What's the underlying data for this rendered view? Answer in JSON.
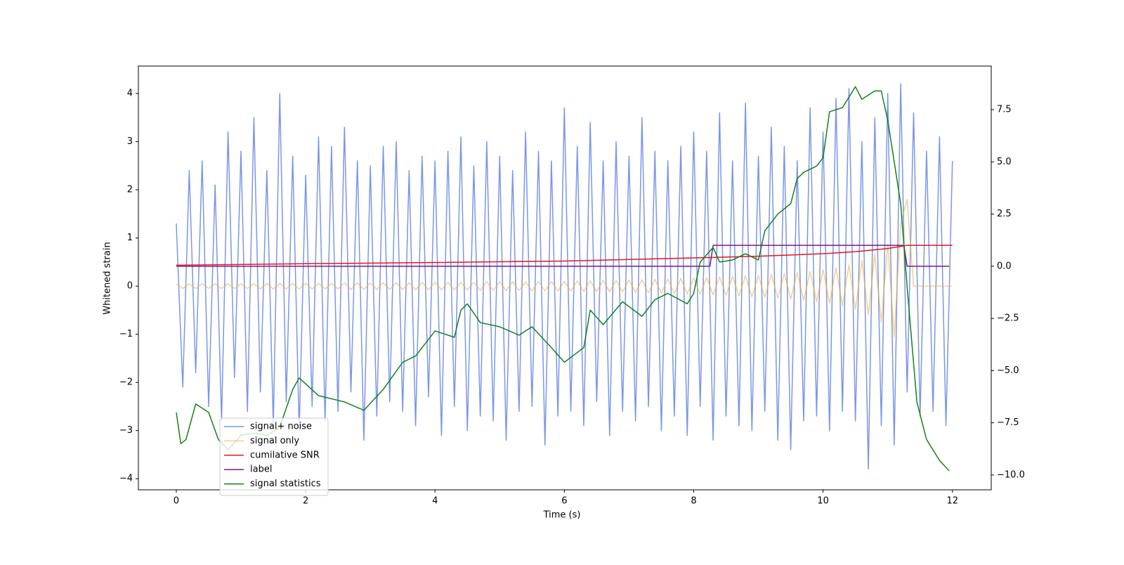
{
  "chart_data": {
    "type": "line",
    "xlabel": "Time (s)",
    "ylabel": "Whitened strain",
    "xlim": [
      -0.586,
      12.6
    ],
    "xticks": [
      0,
      2,
      4,
      6,
      8,
      10,
      12
    ],
    "ylim": [
      -4.23,
      4.57
    ],
    "yticks": [
      {
        "value": -4,
        "label": "−4"
      },
      {
        "value": -3,
        "label": "−3"
      },
      {
        "value": -2,
        "label": "−2"
      },
      {
        "value": -1,
        "label": "−1"
      },
      0,
      1,
      2,
      3,
      4
    ],
    "y2lim": [
      -10.71,
      9.59
    ],
    "y2ticks": [
      {
        "value": -10,
        "label": "−10.0"
      },
      {
        "value": -7.5,
        "label": "−7.5"
      },
      {
        "value": -5,
        "label": "−5.0"
      },
      {
        "value": -2.5,
        "label": "−2.5"
      },
      {
        "value": 0,
        "label": "0.0"
      },
      2.5,
      {
        "value": 5,
        "label": "5.0"
      },
      7.5
    ],
    "legend": "lower left",
    "x": [
      0,
      0.1,
      0.2,
      0.3,
      0.4,
      0.5,
      0.6,
      0.7,
      0.8,
      0.9,
      1,
      1.1,
      1.2,
      1.3,
      1.4,
      1.5,
      1.6,
      1.7,
      1.8,
      1.9,
      2,
      2.1,
      2.2,
      2.3,
      2.4,
      2.5,
      2.6,
      2.7,
      2.8,
      2.9,
      3,
      3.1,
      3.2,
      3.3,
      3.4,
      3.5,
      3.6,
      3.7,
      3.8,
      3.9,
      4,
      4.1,
      4.2,
      4.3,
      4.4,
      4.5,
      4.6,
      4.7,
      4.8,
      4.9,
      5,
      5.1,
      5.2,
      5.3,
      5.4,
      5.5,
      5.6,
      5.7,
      5.8,
      5.9,
      6,
      6.1,
      6.2,
      6.3,
      6.4,
      6.5,
      6.6,
      6.7,
      6.8,
      6.9,
      7,
      7.1,
      7.2,
      7.3,
      7.4,
      7.5,
      7.6,
      7.7,
      7.8,
      7.9,
      8,
      8.1,
      8.2,
      8.3,
      8.4,
      8.5,
      8.6,
      8.7,
      8.8,
      8.9,
      9,
      9.1,
      9.2,
      9.3,
      9.4,
      9.5,
      9.6,
      9.7,
      9.8,
      9.9,
      10,
      10.1,
      10.2,
      10.3,
      10.4,
      10.5,
      10.6,
      10.7,
      10.8,
      10.9,
      11,
      11.1,
      11.2,
      11.3,
      11.4,
      11.5,
      11.6,
      11.7,
      11.8,
      11.9,
      12
    ],
    "series": [
      {
        "name": "signal+ noise",
        "color": "#7b96e8",
        "values": [
          1.3,
          -2.1,
          2.4,
          -1.8,
          2.6,
          -2.5,
          2.1,
          -2.8,
          3.2,
          -1.9,
          2.8,
          -2.6,
          3.5,
          -2.2,
          2.4,
          -2.9,
          4.0,
          -2.4,
          2.7,
          -3.0,
          2.3,
          -2.5,
          3.1,
          -2.8,
          2.9,
          -2.6,
          3.3,
          -2.2,
          2.6,
          -3.2,
          2.5,
          -2.7,
          2.9,
          -2.4,
          3.0,
          -2.6,
          2.4,
          -2.9,
          2.7,
          -2.3,
          2.6,
          -3.1,
          2.8,
          -2.5,
          3.1,
          -3.0,
          2.5,
          -2.7,
          3.0,
          -2.8,
          2.7,
          -3.2,
          2.4,
          -2.6,
          3.2,
          -2.5,
          2.8,
          -3.3,
          2.6,
          -2.7,
          3.7,
          -2.6,
          2.9,
          -2.9,
          3.4,
          -2.4,
          2.6,
          -3.1,
          3.0,
          -2.6,
          2.7,
          -2.8,
          3.5,
          -2.5,
          2.8,
          -3.0,
          2.6,
          -2.7,
          2.9,
          -3.1,
          3.2,
          -2.5,
          2.8,
          -3.2,
          3.6,
          -2.7,
          2.6,
          -2.9,
          3.8,
          -3.0,
          2.7,
          -2.6,
          3.3,
          -3.2,
          2.9,
          -3.4,
          2.6,
          -2.8,
          3.7,
          -2.7,
          3.2,
          -3.0,
          3.9,
          -2.6,
          4.1,
          -2.8,
          3.0,
          -3.8,
          3.5,
          -2.9,
          4.0,
          -3.3,
          4.2,
          -2.2,
          3.6,
          -2.7,
          2.8,
          -2.6,
          3.1,
          -2.9,
          2.6
        ]
      },
      {
        "name": "signal only",
        "color": "#f0b040",
        "alpha": 0.6,
        "values": [
          0.05,
          -0.05,
          0.05,
          -0.05,
          0.05,
          -0.05,
          0.05,
          -0.05,
          0.05,
          -0.05,
          0.05,
          -0.05,
          0.05,
          -0.06,
          0.06,
          -0.06,
          0.06,
          -0.06,
          0.06,
          -0.06,
          0.06,
          -0.06,
          0.06,
          -0.06,
          0.06,
          -0.06,
          0.07,
          -0.07,
          0.07,
          -0.07,
          0.07,
          -0.07,
          0.07,
          -0.07,
          0.07,
          -0.07,
          0.07,
          -0.08,
          0.08,
          -0.08,
          0.08,
          -0.08,
          0.08,
          -0.08,
          0.08,
          -0.08,
          0.08,
          -0.09,
          0.09,
          -0.09,
          0.09,
          -0.09,
          0.09,
          -0.09,
          0.09,
          -0.1,
          0.1,
          -0.1,
          0.1,
          -0.1,
          0.1,
          -0.1,
          0.11,
          -0.11,
          0.11,
          -0.11,
          0.12,
          -0.12,
          0.12,
          -0.12,
          0.13,
          -0.13,
          0.13,
          -0.14,
          0.14,
          -0.14,
          0.15,
          -0.15,
          0.16,
          -0.16,
          0.17,
          -0.17,
          0.18,
          -0.18,
          0.19,
          -0.19,
          0.2,
          -0.2,
          0.21,
          -0.22,
          0.22,
          -0.23,
          0.24,
          -0.25,
          0.26,
          -0.27,
          0.28,
          -0.29,
          0.3,
          -0.32,
          0.34,
          -0.36,
          0.38,
          -0.41,
          0.44,
          -0.48,
          0.53,
          -0.59,
          0.66,
          -0.75,
          0.87,
          -1.05,
          1.3,
          1.8,
          0,
          0,
          0,
          0,
          0,
          0,
          0
        ]
      },
      {
        "name": "cumilative SNR",
        "color": "#e8141c",
        "axis": "y2",
        "x": [
          0,
          2,
          4,
          6,
          8,
          9,
          10,
          10.5,
          11,
          11.3,
          12
        ],
        "values": [
          0.05,
          0.12,
          0.18,
          0.25,
          0.4,
          0.48,
          0.6,
          0.7,
          0.85,
          1.0,
          1.0
        ]
      },
      {
        "name": "label",
        "color": "#7a1a8a",
        "axis": "y2",
        "x": [
          0,
          8.25,
          8.3,
          11.25,
          11.3,
          11.95
        ],
        "values": [
          0,
          0,
          1,
          1,
          0,
          0
        ]
      },
      {
        "name": "signal statistics",
        "color": "#148214",
        "axis": "y2",
        "x": [
          0,
          0.07,
          0.15,
          0.3,
          0.5,
          0.65,
          0.8,
          1.0,
          1.2,
          1.4,
          1.6,
          1.8,
          1.9,
          2.2,
          2.6,
          2.9,
          3.2,
          3.5,
          3.7,
          4.0,
          4.3,
          4.4,
          4.5,
          4.7,
          5.0,
          5.3,
          5.5,
          5.8,
          6.0,
          6.3,
          6.4,
          6.6,
          6.9,
          7.2,
          7.4,
          7.6,
          7.9,
          8.0,
          8.1,
          8.3,
          8.4,
          8.6,
          8.8,
          9.0,
          9.1,
          9.3,
          9.5,
          9.6,
          9.7,
          9.9,
          10.0,
          10.1,
          10.3,
          10.5,
          10.6,
          10.8,
          10.9,
          11.0,
          11.2,
          11.3,
          11.45,
          11.6,
          11.8,
          11.95
        ],
        "values": [
          -7.0,
          -8.5,
          -8.3,
          -6.6,
          -7.0,
          -8.3,
          -8.8,
          -8.1,
          -8.0,
          -8.1,
          -7.7,
          -5.9,
          -5.35,
          -6.2,
          -6.5,
          -6.9,
          -5.9,
          -4.6,
          -4.3,
          -3.1,
          -3.4,
          -2.1,
          -1.8,
          -2.7,
          -2.9,
          -3.3,
          -2.9,
          -3.9,
          -4.6,
          -3.9,
          -2.1,
          -2.8,
          -1.7,
          -2.4,
          -1.6,
          -1.3,
          -1.8,
          -1.3,
          0.2,
          0.9,
          0.2,
          0.3,
          0.6,
          0.3,
          1.7,
          2.5,
          3.0,
          4.2,
          4.5,
          4.8,
          5.2,
          7.4,
          7.6,
          8.6,
          8.0,
          8.4,
          8.4,
          7.0,
          3.0,
          -1.0,
          -6.5,
          -8.3,
          -9.3,
          -9.8
        ]
      }
    ]
  }
}
